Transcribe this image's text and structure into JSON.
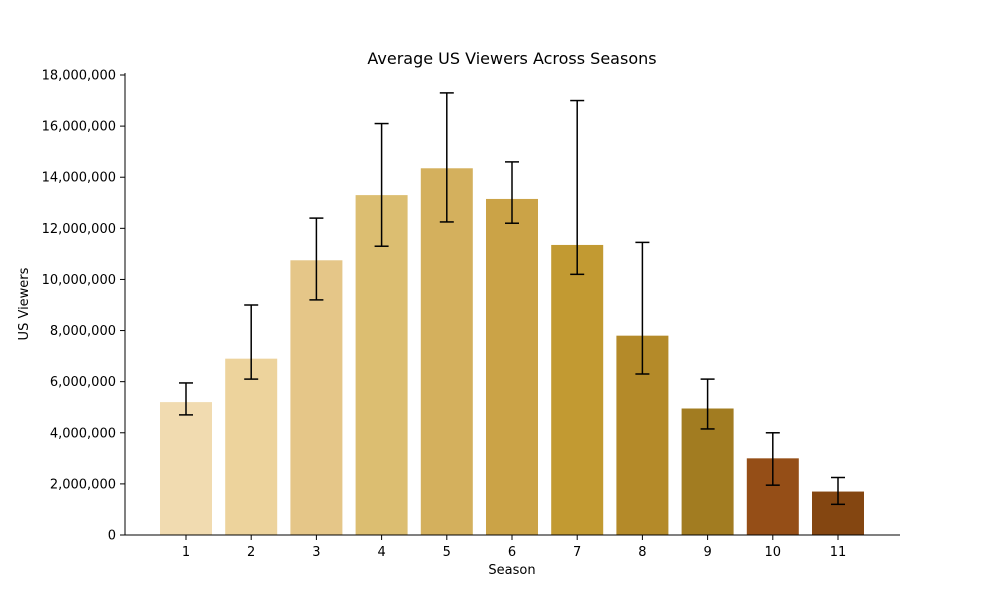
{
  "chart_data": {
    "type": "bar",
    "title": "Average US Viewers Across Seasons",
    "xlabel": "Season",
    "ylabel": "US Viewers",
    "ylim": [
      0,
      18000000
    ],
    "yticks": [
      0,
      2000000,
      4000000,
      6000000,
      8000000,
      10000000,
      12000000,
      14000000,
      16000000,
      18000000
    ],
    "ytick_labels": [
      "0",
      "2,000,000",
      "4,000,000",
      "6,000,000",
      "8,000,000",
      "10,000,000",
      "12,000,000",
      "14,000,000",
      "16,000,000",
      "18,000,000"
    ],
    "grid": false,
    "categories": [
      "1",
      "2",
      "3",
      "4",
      "5",
      "6",
      "7",
      "8",
      "9",
      "10",
      "11"
    ],
    "values": [
      5200000,
      6900000,
      10750000,
      13300000,
      14350000,
      13150000,
      11350000,
      7800000,
      4950000,
      3000000,
      1700000
    ],
    "error_low": [
      4700000,
      6100000,
      9200000,
      11300000,
      12250000,
      12200000,
      10200000,
      6300000,
      4150000,
      1950000,
      1200000
    ],
    "error_high": [
      5950000,
      9000000,
      12400000,
      16100000,
      17300000,
      14600000,
      17000000,
      11450000,
      6100000,
      4000000,
      2250000
    ],
    "colors": [
      "#f1dbb0",
      "#edd39c",
      "#e5c688",
      "#dcbe71",
      "#d4b05d",
      "#cba347",
      "#c29a32",
      "#b48a29",
      "#a27c21",
      "#954e17",
      "#844611"
    ]
  }
}
